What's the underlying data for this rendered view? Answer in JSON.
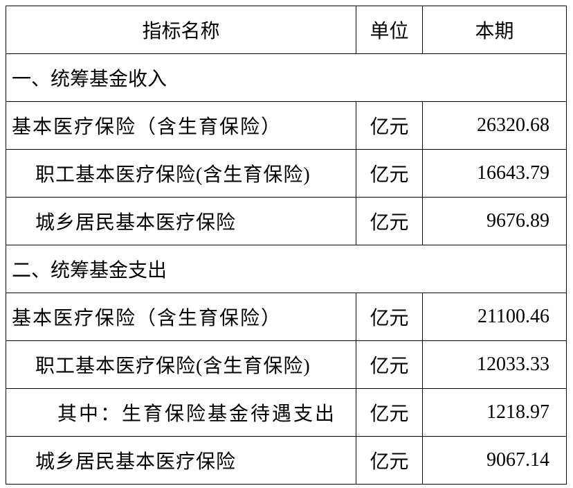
{
  "table": {
    "header": [
      "指标名称",
      "单位",
      "本期"
    ],
    "rows": [
      [
        "一、统筹基金收入"
      ],
      [
        "基本医疗保险（含生育保险）",
        "亿元",
        "26320.68"
      ],
      [
        "职工基本医疗保险(含生育保险)",
        "亿元",
        "16643.79"
      ],
      [
        "城乡居民基本医疗保险",
        "亿元",
        "9676.89"
      ],
      [
        "二、统筹基金支出"
      ],
      [
        "基本医疗保险（含生育保险）",
        "亿元",
        "21100.46"
      ],
      [
        "职工基本医疗保险(含生育保险)",
        "亿元",
        "12033.33"
      ],
      [
        "其中：生育保险基金待遇支出",
        "亿元",
        "1218.97"
      ],
      [
        "城乡居民基本医疗保险",
        "亿元",
        "9067.14"
      ]
    ]
  }
}
